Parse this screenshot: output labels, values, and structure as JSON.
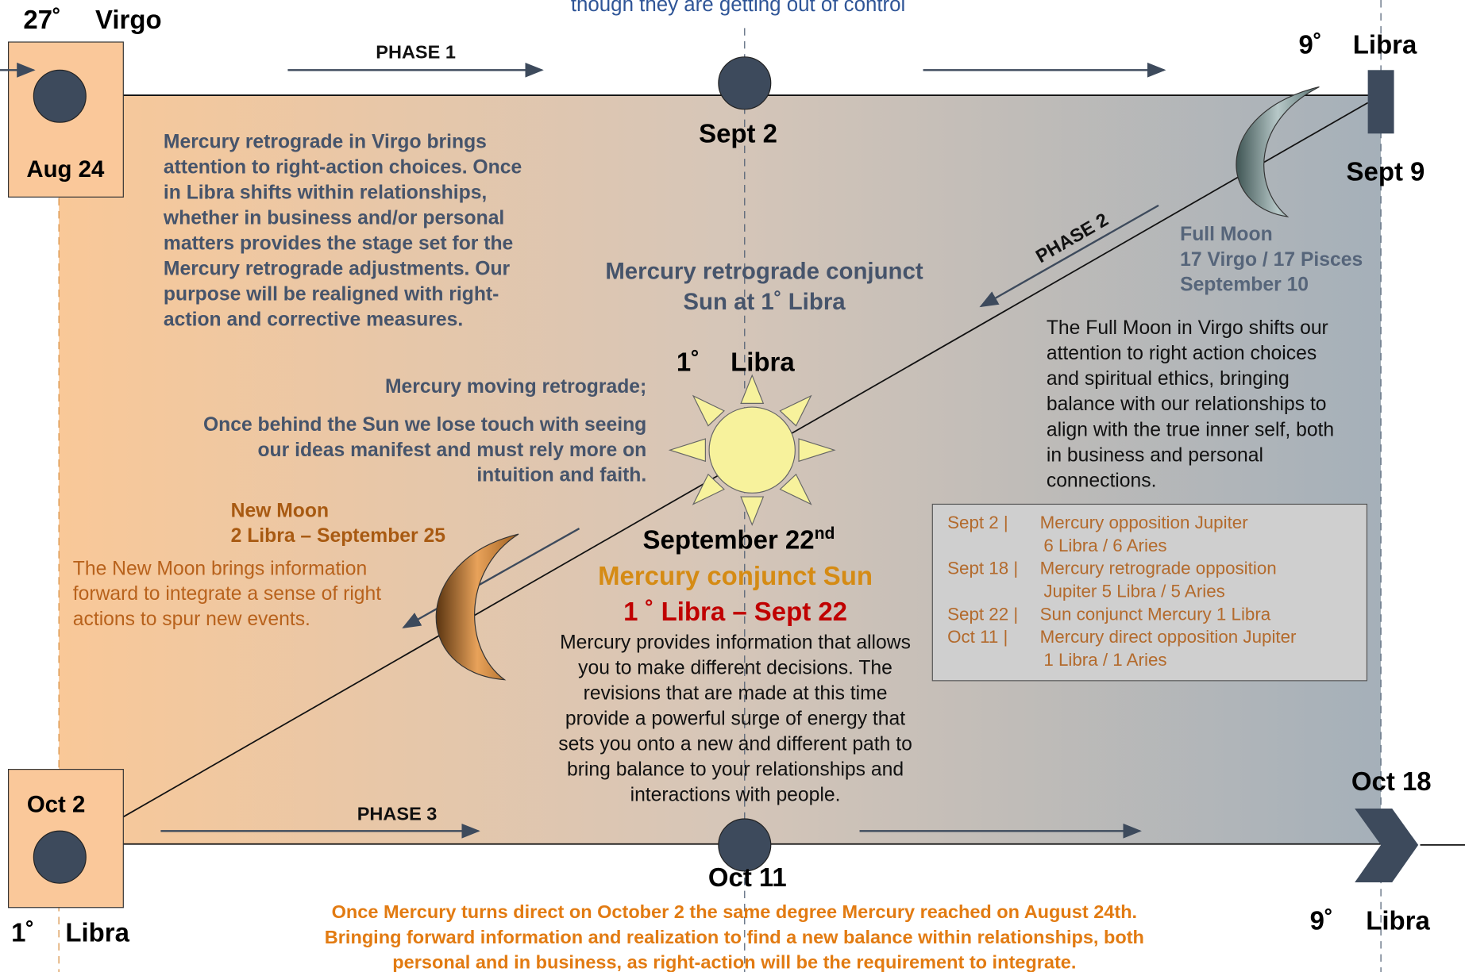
{
  "caption": "though they are getting out of control",
  "start": {
    "degree": "27˚",
    "sign": "Virgo",
    "date": "Aug 24"
  },
  "phases": [
    "PHASE 1",
    "PHASE 2",
    "PHASE 3"
  ],
  "sept2": "Sept 2",
  "sept9": {
    "degree": "9˚",
    "sign": "Libra",
    "date": "Sept 9"
  },
  "intro": [
    "Mercury retrograde in Virgo brings",
    "attention to right-action choices.  Once",
    "in Libra shifts within relationships,",
    "whether in business and/or personal",
    "matters provides the stage set for the",
    "Mercury retrograde adjustments.  Our",
    "purpose will be realigned with right-",
    "action and corrective measures."
  ],
  "conjunct_heading": [
    "Mercury retrograde conjunct",
    "Sun at 1˚   Libra"
  ],
  "full_moon": {
    "title": [
      "Full  Moon",
      "17 Virgo / 17 Pisces",
      "September 10"
    ],
    "text": [
      "The Full Moon in Virgo shifts our",
      "attention to right action choices",
      "and spiritual ethics, bringing",
      "balance with our relationships to",
      "align with the true inner self, both",
      "in business and personal",
      "connections."
    ]
  },
  "sun": {
    "degree": "1˚",
    "sign": "Libra"
  },
  "retro_note": {
    "first": "Mercury moving retrograde;",
    "lines": [
      "Once behind the Sun we lose touch with seeing",
      "our ideas manifest and must rely more on",
      "intuition and faith."
    ]
  },
  "new_moon": {
    "title": [
      "New Moon",
      "2 Libra – September 25"
    ],
    "text": [
      "The New Moon brings information",
      "forward to integrate a sense of right",
      "actions to spur new events."
    ]
  },
  "sept22": {
    "main": "September 22",
    "suffix": "nd",
    "heading": "Mercury conjunct Sun",
    "position": "1 ˚   Libra – Sept 22",
    "text": [
      "Mercury provides information that allows",
      "you to make different decisions.  The",
      "revisions that are made at this time",
      "provide a powerful surge of energy that",
      "sets you onto a new and different path to",
      "bring balance to your relationships and",
      "interactions with people."
    ]
  },
  "table": {
    "rows": [
      {
        "date": "Sept 2   |",
        "lines": [
          "Mercury opposition Jupiter",
          "6 Libra / 6 Aries"
        ]
      },
      {
        "date": "Sept 18  |",
        "lines": [
          "Mercury retrograde opposition",
          "Jupiter   5 Libra / 5 Aries"
        ]
      },
      {
        "date": "Sept 22  |",
        "lines": [
          "Sun conjunct Mercury  1 Libra"
        ]
      },
      {
        "date": "Oct 11    |",
        "lines": [
          "Mercury direct opposition Jupiter",
          "1 Libra / 1 Aries"
        ]
      }
    ]
  },
  "oct2": {
    "date": "Oct 2",
    "degree": "1˚",
    "sign": "Libra"
  },
  "oct11": "Oct 11",
  "oct18": {
    "date": "Oct 18",
    "degree": "9˚",
    "sign": "Libra"
  },
  "closing": [
    "Once Mercury turns direct on October 2 the same degree Mercury reached on August 24th.",
    "Bringing forward information and realization to find a new balance within relationships, both",
    "personal and in business, as right-action will be the requirement to integrate."
  ]
}
